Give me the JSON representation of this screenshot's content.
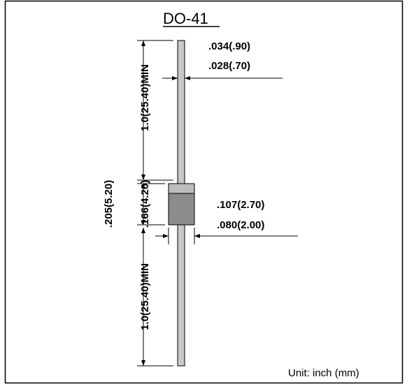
{
  "package_name": "DO-41",
  "lead_diameter": {
    "max": ".034(.90)",
    "min": ".028(.70)"
  },
  "body_diameter": {
    "max": ".107(2.70)",
    "min": ".080(2.00)"
  },
  "body_length_max": ".205(5.20)",
  "body_length_min": ".166(4.20)",
  "lead_length_top": "1.0(25.40)MIN",
  "lead_length_bottom": "1.0(25.40)MIN",
  "unit_note": "Unit:  inch (mm)",
  "colors": {
    "lead": "#c8c8c8",
    "body": "#8c8c8c",
    "cathode_band": "#bdbdbd",
    "line": "#000000"
  }
}
